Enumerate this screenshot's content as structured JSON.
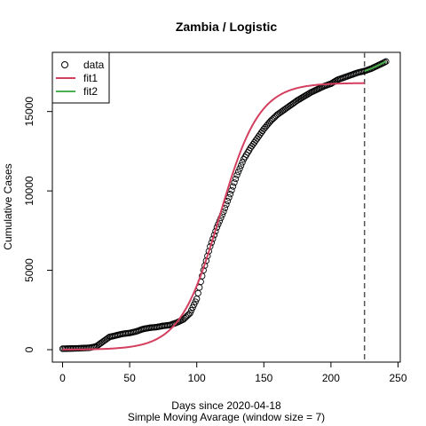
{
  "chart_data": {
    "type": "line",
    "title": "Zambia / Logistic",
    "xlabel": "Days since 2020-04-18",
    "xlabel2": "Simple Moving Avarage (window size = 7)",
    "ylabel": "Cumulative Cases",
    "xlim": [
      0,
      250
    ],
    "ylim": [
      0,
      18000
    ],
    "x_ticks": [
      "0",
      "50",
      "100",
      "150",
      "200",
      "250"
    ],
    "x_tick_values": [
      0,
      50,
      100,
      150,
      200,
      250
    ],
    "y_ticks": [
      "0",
      "5000",
      "10000",
      "15000"
    ],
    "y_tick_values": [
      0,
      5000,
      10000,
      15000
    ],
    "grid": false,
    "legend_position": "top-left",
    "vline": {
      "x": 225,
      "style": "dashed",
      "color": "#555555"
    },
    "series": [
      {
        "name": "data",
        "kind": "points",
        "color": "#000000",
        "anchors": [
          [
            0,
            60
          ],
          [
            10,
            80
          ],
          [
            20,
            120
          ],
          [
            25,
            200
          ],
          [
            30,
            500
          ],
          [
            35,
            800
          ],
          [
            40,
            900
          ],
          [
            45,
            1000
          ],
          [
            50,
            1050
          ],
          [
            55,
            1150
          ],
          [
            60,
            1300
          ],
          [
            65,
            1380
          ],
          [
            70,
            1420
          ],
          [
            75,
            1500
          ],
          [
            80,
            1550
          ],
          [
            85,
            1700
          ],
          [
            90,
            1900
          ],
          [
            95,
            2300
          ],
          [
            100,
            3200
          ],
          [
            105,
            5000
          ],
          [
            110,
            6500
          ],
          [
            115,
            7700
          ],
          [
            120,
            8700
          ],
          [
            125,
            9800
          ],
          [
            130,
            11000
          ],
          [
            135,
            12000
          ],
          [
            140,
            12700
          ],
          [
            145,
            13300
          ],
          [
            150,
            13900
          ],
          [
            155,
            14400
          ],
          [
            160,
            14800
          ],
          [
            165,
            15100
          ],
          [
            170,
            15400
          ],
          [
            175,
            15700
          ],
          [
            180,
            15950
          ],
          [
            185,
            16200
          ],
          [
            190,
            16400
          ],
          [
            195,
            16600
          ],
          [
            200,
            16750
          ],
          [
            205,
            17000
          ],
          [
            210,
            17150
          ],
          [
            215,
            17300
          ],
          [
            220,
            17450
          ],
          [
            225,
            17550
          ],
          [
            230,
            17700
          ],
          [
            235,
            17900
          ],
          [
            240,
            18100
          ],
          [
            241,
            18150
          ]
        ]
      },
      {
        "name": "fit1",
        "kind": "line",
        "color": "#d43f5f",
        "L": 16800,
        "k": 0.068,
        "x0": 117,
        "range": [
          0,
          225
        ]
      },
      {
        "name": "fit2",
        "kind": "line",
        "color": "#4caf50",
        "anchors": [
          [
            225,
            17550
          ],
          [
            230,
            17700
          ],
          [
            235,
            17900
          ],
          [
            241,
            18150
          ]
        ]
      }
    ]
  }
}
